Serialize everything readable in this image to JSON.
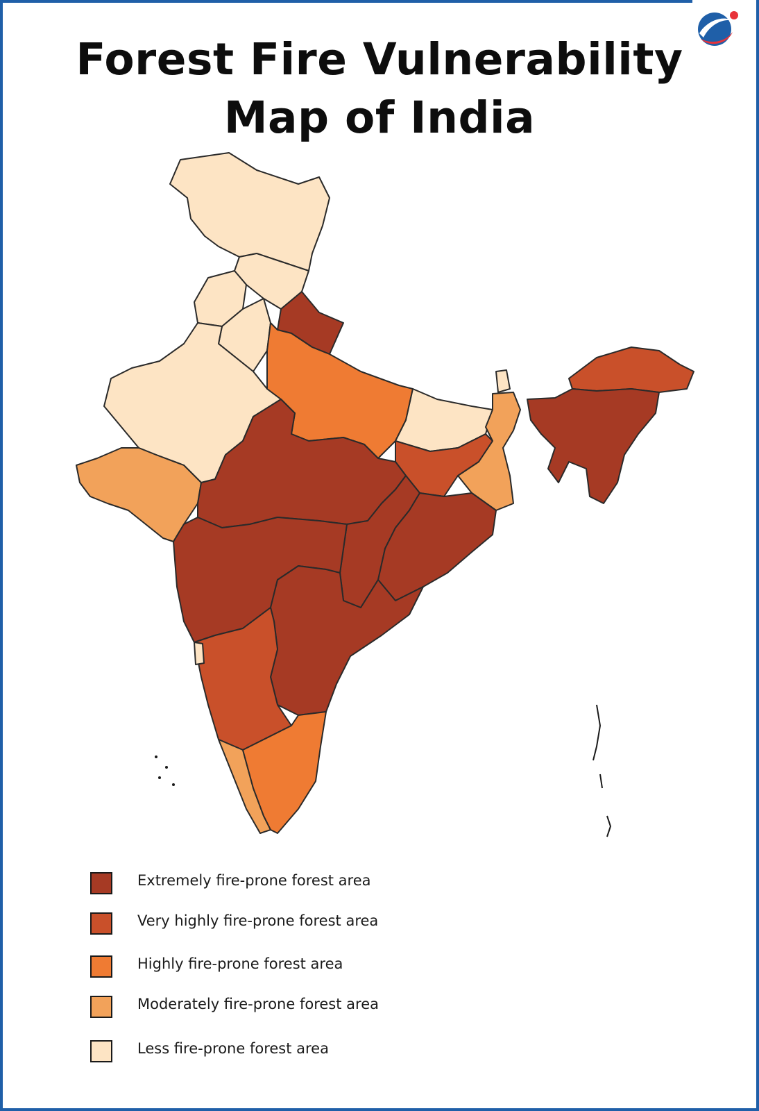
{
  "title": {
    "line1": "Forest Fire Vulnerability",
    "line2": "Map of India"
  },
  "logo": {
    "icon": "brand-globe-logo-icon",
    "colors": [
      "#1f5fa8",
      "#e8333a"
    ]
  },
  "map": {
    "regions": [
      {
        "name": "Jammu and Kashmir / Ladakh",
        "category": "less"
      },
      {
        "name": "Himachal Pradesh",
        "category": "less"
      },
      {
        "name": "Punjab",
        "category": "less"
      },
      {
        "name": "Haryana",
        "category": "less"
      },
      {
        "name": "Rajasthan",
        "category": "less"
      },
      {
        "name": "Uttarakhand",
        "category": "extreme"
      },
      {
        "name": "Uttar Pradesh",
        "category": "high"
      },
      {
        "name": "Bihar",
        "category": "less"
      },
      {
        "name": "Sikkim",
        "category": "less"
      },
      {
        "name": "West Bengal",
        "category": "moderate"
      },
      {
        "name": "Jharkhand",
        "category": "very_high"
      },
      {
        "name": "Gujarat",
        "category": "moderate"
      },
      {
        "name": "Madhya Pradesh",
        "category": "extreme"
      },
      {
        "name": "Chhattisgarh",
        "category": "extreme"
      },
      {
        "name": "Odisha",
        "category": "extreme"
      },
      {
        "name": "Maharashtra",
        "category": "extreme"
      },
      {
        "name": "Telangana / Andhra Pradesh",
        "category": "extreme"
      },
      {
        "name": "Karnataka",
        "category": "very_high"
      },
      {
        "name": "Goa",
        "category": "less"
      },
      {
        "name": "Kerala",
        "category": "moderate"
      },
      {
        "name": "Tamil Nadu",
        "category": "high"
      },
      {
        "name": "Northeast (Assam, Meghalaya, Nagaland, Manipur, Mizoram, Tripura)",
        "category": "extreme"
      },
      {
        "name": "Arunachal Pradesh",
        "category": "very_high"
      }
    ]
  },
  "legend": {
    "items": [
      {
        "key": "extreme",
        "label": "Extremely fire-prone forest area",
        "color": "#a63a24"
      },
      {
        "key": "very_high",
        "label": "Very highly fire-prone forest area",
        "color": "#c9502a"
      },
      {
        "key": "high",
        "label": "Highly fire-prone forest area",
        "color": "#ef7b33"
      },
      {
        "key": "moderate",
        "label": "Moderately fire-prone forest area",
        "color": "#f2a25a"
      },
      {
        "key": "less",
        "label": "Less fire-prone forest area",
        "color": "#fde4c4"
      }
    ]
  }
}
